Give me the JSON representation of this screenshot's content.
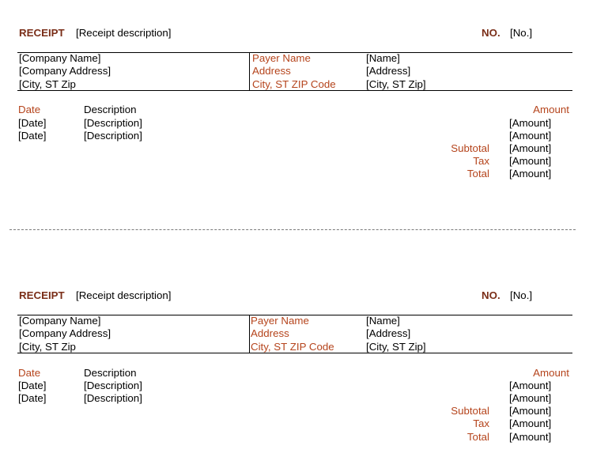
{
  "receipts": [
    {
      "title": "RECEIPT",
      "description": "[Receipt description]",
      "number_label": "NO.",
      "number_value": "[No.]",
      "company": {
        "name": "[Company Name]",
        "address": "[Company Address]",
        "city": "[City, ST  Zip"
      },
      "payer": {
        "name_label": "Payer Name",
        "address_label": "Address",
        "city_label": "City, ST ZIP Code",
        "name_value": "[Name]",
        "address_value": "[Address]",
        "city_value": "[City, ST  Zip]"
      },
      "columns": {
        "date": "Date",
        "description": "Description",
        "amount": "Amount"
      },
      "rows": [
        {
          "date": "[Date]",
          "description": "[Description]",
          "amount": "[Amount]"
        },
        {
          "date": "[Date]",
          "description": "[Description]",
          "amount": "[Amount]"
        }
      ],
      "totals": {
        "subtotal_label": "Subtotal",
        "subtotal_value": "[Amount]",
        "tax_label": "Tax",
        "tax_value": "[Amount]",
        "total_label": "Total",
        "total_value": "[Amount]"
      }
    },
    {
      "title": "RECEIPT",
      "description": "[Receipt description]",
      "number_label": "NO.",
      "number_value": "[No.]",
      "company": {
        "name": "[Company Name]",
        "address": "[Company Address]",
        "city": "[City, ST  Zip"
      },
      "payer": {
        "name_label": "Payer Name",
        "address_label": "Address",
        "city_label": "City, ST ZIP Code",
        "name_value": "[Name]",
        "address_value": "[Address]",
        "city_value": "[City, ST  Zip]"
      },
      "columns": {
        "date": "Date",
        "description": "Description",
        "amount": "Amount"
      },
      "rows": [
        {
          "date": "[Date]",
          "description": "[Description]",
          "amount": "[Amount]"
        },
        {
          "date": "[Date]",
          "description": "[Description]",
          "amount": "[Amount]"
        }
      ],
      "totals": {
        "subtotal_label": "Subtotal",
        "subtotal_value": "[Amount]",
        "tax_label": "Tax",
        "tax_value": "[Amount]",
        "total_label": "Total",
        "total_value": "[Amount]"
      }
    }
  ],
  "colors": {
    "label_red": "#b5441c",
    "title_red": "#7a2e18",
    "perforation": "#7a7a7a"
  }
}
